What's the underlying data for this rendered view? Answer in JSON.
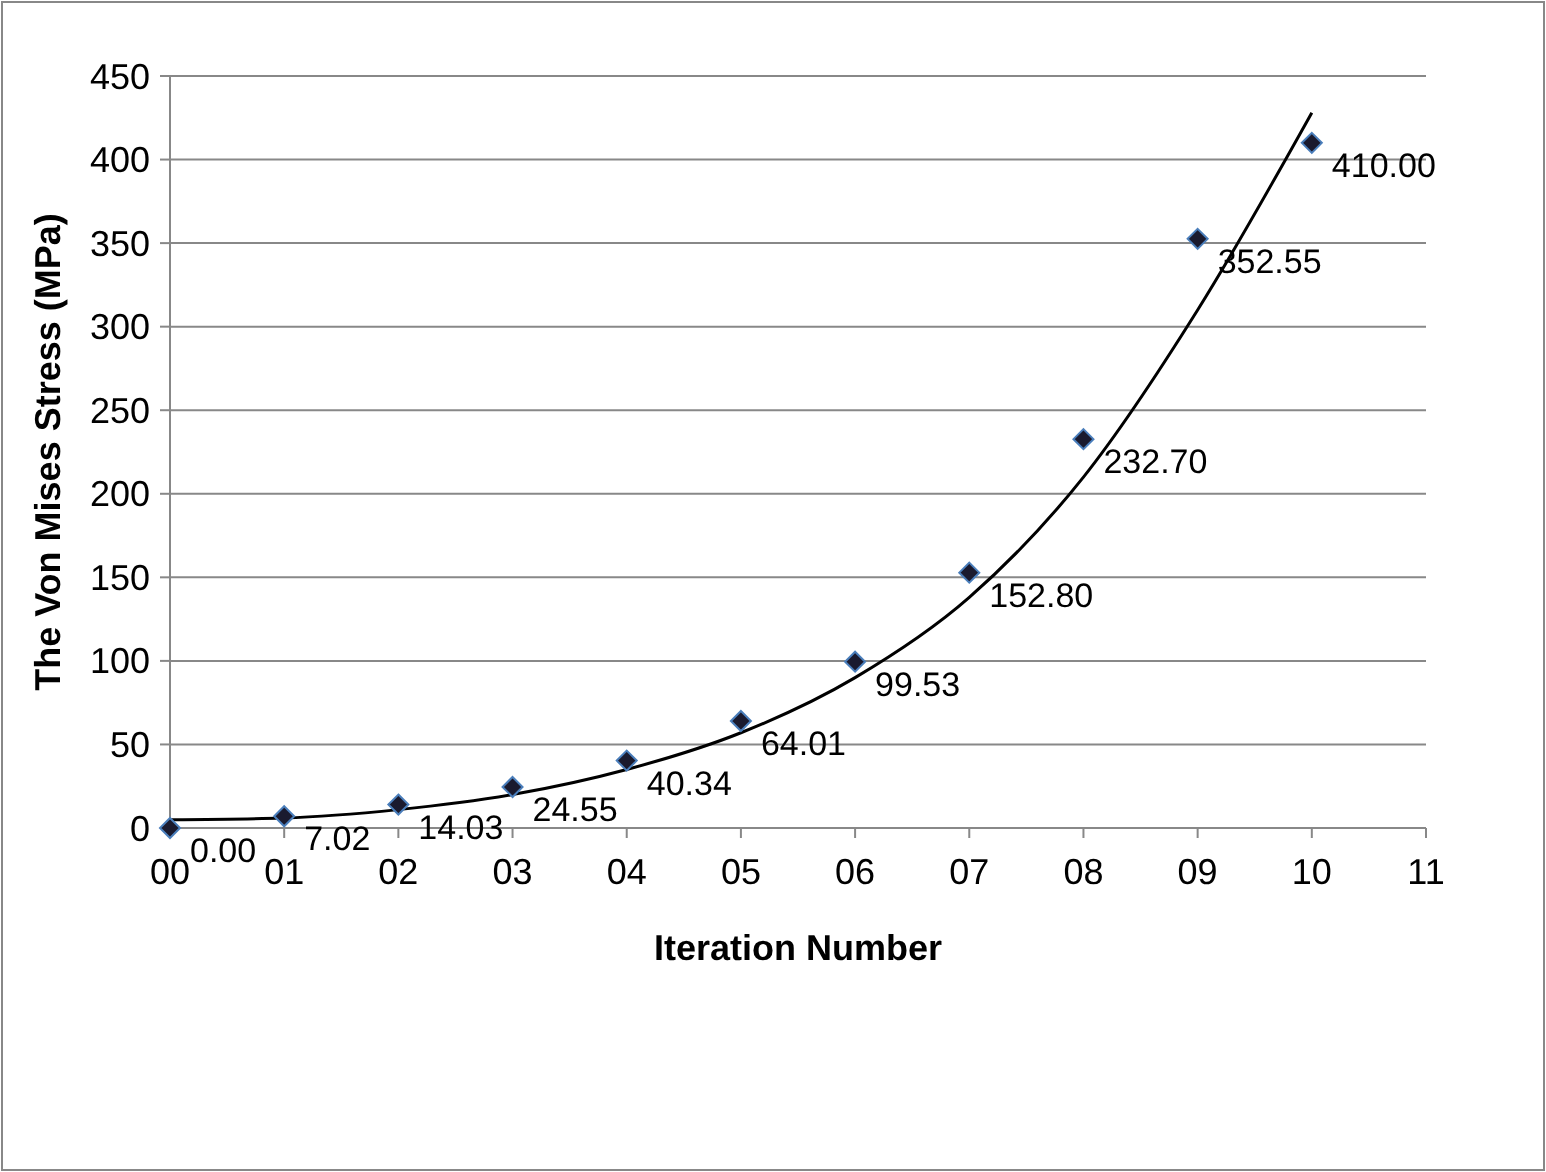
{
  "chart_data": {
    "type": "scatter",
    "xlabel": "Iteration Number",
    "ylabel": "The Von Mises Stress (MPa)",
    "xlim": [
      0,
      11
    ],
    "xticks": [
      {
        "value": 0,
        "label": "00"
      },
      {
        "value": 1,
        "label": "01"
      },
      {
        "value": 2,
        "label": "02"
      },
      {
        "value": 3,
        "label": "03"
      },
      {
        "value": 4,
        "label": "04"
      },
      {
        "value": 5,
        "label": "05"
      },
      {
        "value": 6,
        "label": "06"
      },
      {
        "value": 7,
        "label": "07"
      },
      {
        "value": 8,
        "label": "08"
      },
      {
        "value": 9,
        "label": "09"
      },
      {
        "value": 10,
        "label": "10"
      },
      {
        "value": 11,
        "label": "11"
      }
    ],
    "ylim": [
      0,
      450
    ],
    "yticks": [
      0,
      50,
      100,
      150,
      200,
      250,
      300,
      350,
      400,
      450
    ],
    "grid": "y",
    "series": [
      {
        "color": "#1a1a2e",
        "marker": "diamond",
        "x": [
          0,
          1,
          2,
          3,
          4,
          5,
          6,
          7,
          8,
          9,
          10
        ],
        "values": [
          0,
          7.02,
          14.03,
          24.55,
          40.34,
          64.01,
          99.53,
          152.8,
          232.7,
          352.55,
          410
        ],
        "value_labels": [
          "0.00",
          "7.02",
          "14.03",
          "24.55",
          "40.34",
          "64.01",
          "99.53",
          "152.80",
          "232.70",
          "352.55",
          "410.00"
        ]
      },
      {
        "type": "line",
        "color": "#000000",
        "marker": "none",
        "line_style": "solid",
        "x": [
          0,
          1,
          2,
          3,
          4,
          5,
          6,
          7,
          8,
          9,
          10
        ],
        "values": [
          5,
          6,
          11,
          20,
          35,
          57,
          90,
          138,
          210,
          310,
          428
        ]
      }
    ]
  }
}
